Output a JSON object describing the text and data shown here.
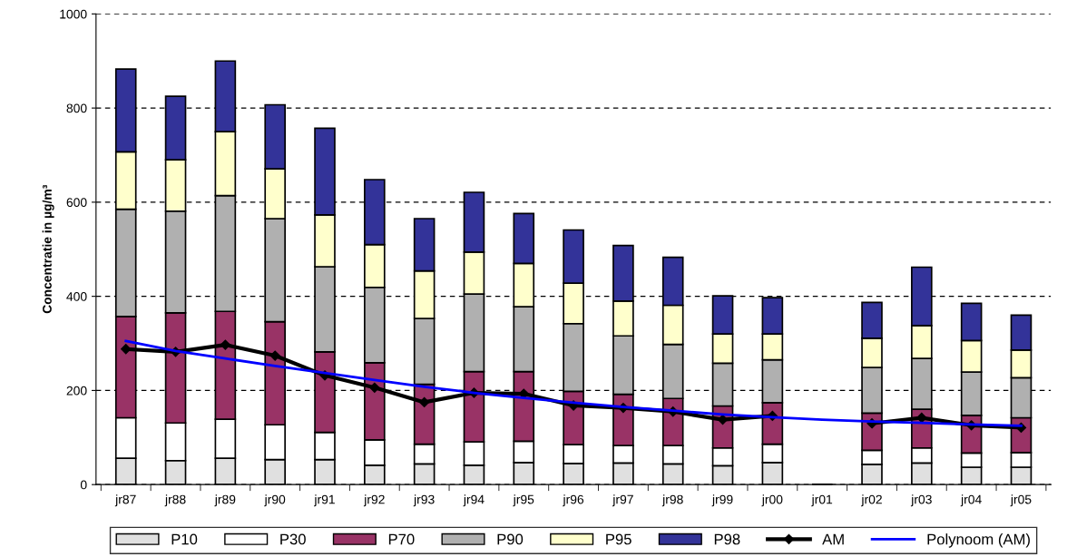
{
  "chart_data": {
    "type": "bar",
    "stacked": true,
    "ylabel": "Concentratie in µg/m³",
    "categories": [
      "jr87",
      "jr88",
      "jr89",
      "jr90",
      "jr91",
      "jr92",
      "jr93",
      "jr94",
      "jr95",
      "jr96",
      "jr97",
      "jr98",
      "jr99",
      "jr00",
      "jr01",
      "jr02",
      "jr03",
      "jr04",
      "jr05"
    ],
    "series": [
      {
        "name": "P10",
        "color": "#e0e0e0",
        "values": [
          56,
          51,
          56,
          53,
          53,
          41,
          44,
          41,
          47,
          45,
          46,
          44,
          40,
          47,
          null,
          43,
          46,
          37,
          37
        ]
      },
      {
        "name": "P30",
        "color": "#ffffff",
        "values": [
          86,
          80,
          83,
          74,
          58,
          54,
          42,
          50,
          45,
          40,
          37,
          39,
          38,
          39,
          null,
          30,
          32,
          30,
          31
        ]
      },
      {
        "name": "P70",
        "color": "#993366",
        "values": [
          215,
          234,
          229,
          219,
          171,
          164,
          127,
          149,
          148,
          113,
          109,
          100,
          89,
          88,
          null,
          79,
          82,
          80,
          74
        ]
      },
      {
        "name": "P90",
        "color": "#b0b0b0",
        "values": [
          228,
          216,
          246,
          219,
          181,
          160,
          140,
          165,
          138,
          144,
          124,
          115,
          91,
          91,
          null,
          97,
          108,
          92,
          85
        ]
      },
      {
        "name": "P95",
        "color": "#ffffcc",
        "values": [
          122,
          109,
          136,
          106,
          110,
          91,
          101,
          89,
          92,
          86,
          74,
          83,
          62,
          55,
          null,
          62,
          70,
          67,
          59
        ]
      },
      {
        "name": "P98",
        "color": "#333399",
        "values": [
          176,
          135,
          150,
          136,
          184,
          138,
          111,
          127,
          106,
          113,
          118,
          102,
          81,
          77,
          null,
          76,
          124,
          79,
          74
        ]
      },
      {
        "name": "AM",
        "type": "line",
        "color": "#000000",
        "marker": "diamond",
        "values": [
          288,
          282,
          297,
          274,
          232,
          206,
          175,
          195,
          193,
          168,
          163,
          155,
          138,
          146,
          null,
          130,
          142,
          126,
          121
        ]
      },
      {
        "name": "Polynoom (AM)",
        "type": "line",
        "color": "#0000ff",
        "values": [
          305,
          284,
          268,
          252,
          237,
          222,
          208,
          195,
          184,
          174,
          165,
          157,
          149,
          143,
          138,
          134,
          131,
          128,
          125
        ]
      }
    ],
    "ylim": [
      0,
      1000
    ],
    "yticks": [
      0,
      200,
      400,
      600,
      800,
      1000
    ],
    "grid": "y",
    "legend": "bottom"
  }
}
